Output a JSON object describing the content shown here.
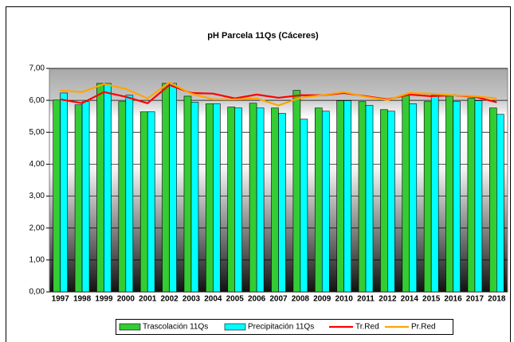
{
  "chart_data": {
    "type": "bar",
    "title": "pH Parcela 11Qs (Cáceres)",
    "categories": [
      "1997",
      "1998",
      "1999",
      "2000",
      "2001",
      "2002",
      "2003",
      "2004",
      "2005",
      "2006",
      "2007",
      "2008",
      "2009",
      "2010",
      "2011",
      "2012",
      "2014",
      "2015",
      "2016",
      "2017",
      "2018"
    ],
    "series": [
      {
        "name": "Trascolación  11Qs",
        "type": "bar",
        "color": "#33cc33",
        "values": [
          6.01,
          5.86,
          6.53,
          5.96,
          5.64,
          6.53,
          6.13,
          5.89,
          5.79,
          5.91,
          5.76,
          6.31,
          5.76,
          5.99,
          5.96,
          5.71,
          6.18,
          5.96,
          6.13,
          6.06,
          5.76
        ]
      },
      {
        "name": "Precipitación 11Qs",
        "type": "bar",
        "color": "#00ffff",
        "values": [
          6.23,
          5.96,
          6.53,
          6.16,
          5.64,
          6.53,
          5.94,
          5.89,
          5.76,
          5.76,
          5.59,
          5.41,
          5.66,
          5.99,
          5.84,
          5.66,
          5.89,
          6.16,
          5.96,
          5.99,
          5.56
        ]
      },
      {
        "name": "Tr.Red",
        "type": "line",
        "color": "#ff0000",
        "values": [
          6.03,
          5.91,
          6.26,
          6.11,
          5.91,
          6.48,
          6.23,
          6.21,
          6.06,
          6.18,
          6.08,
          6.16,
          6.16,
          6.23,
          6.13,
          6.03,
          6.18,
          6.13,
          6.16,
          6.11,
          5.94
        ]
      },
      {
        "name": "Pr.Red",
        "type": "line",
        "color": "#ffa500",
        "values": [
          6.31,
          6.26,
          6.51,
          6.36,
          6.06,
          6.56,
          6.21,
          6.03,
          6.03,
          6.06,
          5.84,
          6.08,
          6.16,
          6.26,
          6.11,
          6.01,
          6.23,
          6.21,
          6.16,
          6.13,
          6.06
        ]
      }
    ],
    "ylim": [
      0,
      7
    ],
    "yticks": [
      {
        "value": 0,
        "label": "0,00"
      },
      {
        "value": 1,
        "label": "1,00"
      },
      {
        "value": 2,
        "label": "2,00"
      },
      {
        "value": 3,
        "label": "3,00"
      },
      {
        "value": 4,
        "label": "4,00"
      },
      {
        "value": 5,
        "label": "5,00"
      },
      {
        "value": 6,
        "label": "6,00"
      },
      {
        "value": 7,
        "label": "7,00"
      }
    ],
    "grid": true,
    "legend": "bottom"
  }
}
